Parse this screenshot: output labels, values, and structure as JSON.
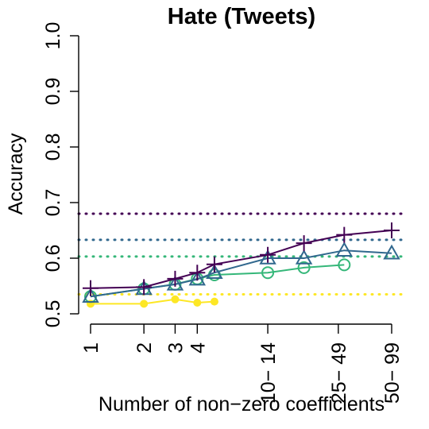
{
  "chart_data": {
    "type": "line",
    "title": "Hate (Tweets)",
    "xlabel": "Number of non−zero coefficients",
    "ylabel": "Accuracy",
    "ylim": [
      0.5,
      1.0
    ],
    "yticks": [
      "0.5",
      "0.6",
      "0.7",
      "0.8",
      "0.9",
      "1.0"
    ],
    "ytick_values": [
      0.5,
      0.6,
      0.7,
      0.8,
      0.9,
      1.0
    ],
    "xscale": "log",
    "xticks": [
      {
        "value": 1,
        "label": "1"
      },
      {
        "value": 2,
        "label": "2"
      },
      {
        "value": 3,
        "label": "3"
      },
      {
        "value": 4,
        "label": "4"
      },
      {
        "value": 10,
        "label": "10− 14"
      },
      {
        "value": 25,
        "label": "25− 49"
      },
      {
        "value": 50,
        "label": "50− 99"
      }
    ],
    "grid": false,
    "legend": "none",
    "series": [
      {
        "color": "#440154",
        "marker": "plus",
        "x": [
          1,
          2,
          3,
          4,
          5,
          10,
          16,
          27,
          50
        ],
        "values": [
          0.546,
          0.548,
          0.563,
          0.574,
          0.589,
          0.606,
          0.627,
          0.642,
          0.65
        ],
        "baseline": 0.68
      },
      {
        "color": "#31688e",
        "marker": "triangle",
        "x": [
          1,
          2,
          3,
          4,
          5,
          10,
          16,
          27,
          50
        ],
        "values": [
          0.531,
          0.545,
          0.553,
          0.562,
          0.574,
          0.6,
          0.6,
          0.614,
          0.609
        ],
        "baseline": 0.633
      },
      {
        "color": "#35b779",
        "marker": "circle",
        "x": [
          1,
          2,
          3,
          4,
          5,
          10,
          16,
          27
        ],
        "values": [
          0.531,
          0.545,
          0.553,
          0.563,
          0.57,
          0.574,
          0.583,
          0.588
        ],
        "baseline": 0.603
      },
      {
        "color": "#fde725",
        "marker": "dot",
        "x": [
          1,
          2,
          3,
          4,
          5
        ],
        "values": [
          0.518,
          0.518,
          0.526,
          0.52,
          0.522
        ],
        "baseline": 0.535
      }
    ]
  }
}
